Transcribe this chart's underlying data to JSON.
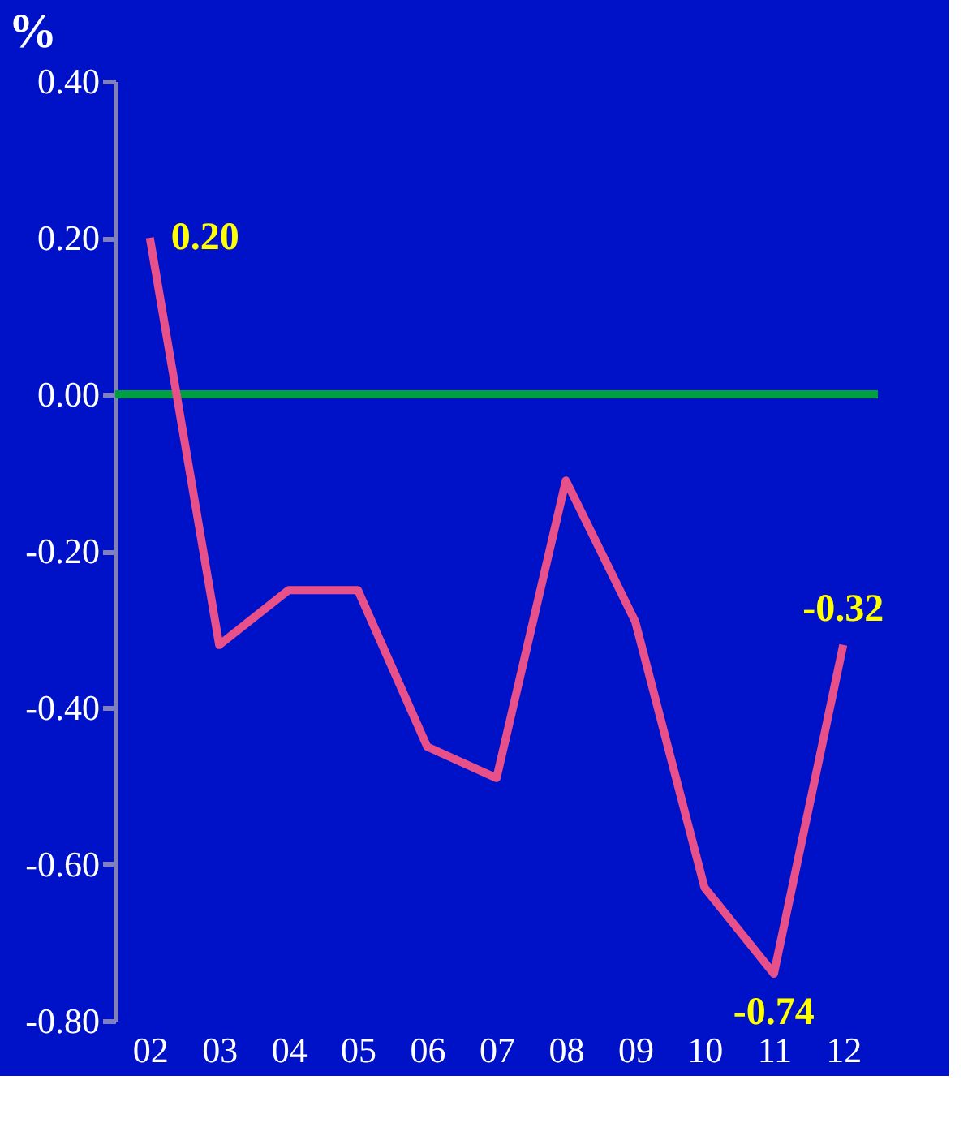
{
  "chart_data": {
    "type": "line",
    "ylabel": "%",
    "categories": [
      "02",
      "03",
      "04",
      "05",
      "06",
      "07",
      "08",
      "09",
      "10",
      "11",
      "12"
    ],
    "series": [
      {
        "color": "#e8508a",
        "values": [
          0.2,
          -0.32,
          -0.25,
          -0.25,
          -0.45,
          -0.49,
          -0.11,
          -0.29,
          -0.63,
          -0.74,
          -0.32
        ],
        "value_labels": [
          "0.20",
          null,
          null,
          null,
          null,
          null,
          null,
          null,
          null,
          "-0.74",
          "-0.32"
        ]
      }
    ],
    "ylim": [
      -0.8,
      0.4
    ],
    "yticks": [
      {
        "value": 0.4,
        "label": "0.40"
      },
      {
        "value": 0.2,
        "label": "0.20"
      },
      {
        "value": 0,
        "label": "0.00"
      },
      {
        "value": -0.2,
        "label": "-0.20"
      },
      {
        "value": -0.4,
        "label": "-0.40"
      },
      {
        "value": -0.6,
        "label": "-0.60"
      },
      {
        "value": -0.8,
        "label": "-0.80"
      }
    ],
    "ref_lines": [
      {
        "axis": "y",
        "value": 0,
        "color": "#00a040"
      }
    ],
    "grid": false,
    "marker": "none",
    "line_style": "solid"
  }
}
